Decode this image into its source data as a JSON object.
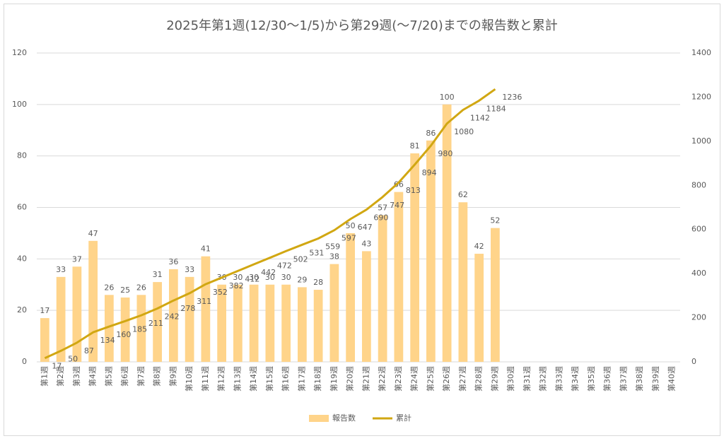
{
  "chart_data": {
    "type": "bar",
    "title": "2025年第1週(12/30～1/5)から第29週(～7/20)までの報告数と累計",
    "categories": [
      "第1週",
      "第2週",
      "第3週",
      "第4週",
      "第5週",
      "第6週",
      "第7週",
      "第8週",
      "第9週",
      "第10週",
      "第11週",
      "第12週",
      "第13週",
      "第14週",
      "第15週",
      "第16週",
      "第17週",
      "第18週",
      "第19週",
      "第20週",
      "第21週",
      "第22週",
      "第23週",
      "第24週",
      "第25週",
      "第26週",
      "第27週",
      "第28週",
      "第29週",
      "第30週",
      "第31週",
      "第32週",
      "第33週",
      "第34週",
      "第35週",
      "第36週",
      "第37週",
      "第38週",
      "第39週",
      "第40週"
    ],
    "series": [
      {
        "name": "報告数",
        "type": "bar",
        "color": "#ffd48a",
        "values": [
          17,
          33,
          37,
          47,
          26,
          25,
          26,
          31,
          36,
          33,
          41,
          30,
          30,
          30,
          30,
          30,
          29,
          28,
          38,
          50,
          43,
          57,
          66,
          81,
          86,
          100,
          62,
          42,
          52,
          null,
          null,
          null,
          null,
          null,
          null,
          null,
          null,
          null,
          null,
          null
        ]
      },
      {
        "name": "累計",
        "type": "line",
        "color": "#d1a712",
        "axis": "y2",
        "values": [
          17,
          50,
          87,
          134,
          160,
          185,
          211,
          242,
          278,
          311,
          352,
          382,
          412,
          442,
          472,
          502,
          531,
          559,
          597,
          647,
          690,
          747,
          813,
          894,
          980,
          1080,
          1142,
          1184,
          1236,
          null,
          null,
          null,
          null,
          null,
          null,
          null,
          null,
          null,
          null,
          null
        ]
      }
    ],
    "ylim": [
      0,
      120
    ],
    "yticks": [
      0,
      20,
      40,
      60,
      80,
      100,
      120
    ],
    "y2lim": [
      0,
      1400
    ],
    "y2ticks": [
      0,
      200,
      400,
      600,
      800,
      1000,
      1200,
      1400
    ],
    "grid": true,
    "legend": "bottom"
  }
}
